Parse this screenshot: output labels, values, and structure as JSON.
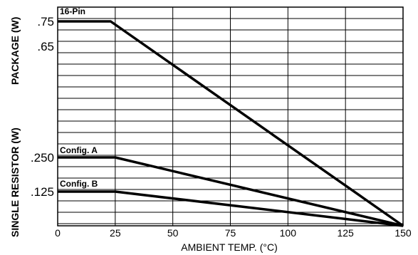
{
  "chart_data": {
    "type": "line",
    "xlabel": "AMBIENT TEMP. (°C)",
    "ylabel_top": "PACKAGE (W)",
    "ylabel_bottom": "SINGLE RESISTOR (W)",
    "xlim": [
      0,
      150
    ],
    "x_ticks": [
      "0",
      "25",
      "50",
      "75",
      "100",
      "125",
      "150"
    ],
    "y_tick_labels": [
      ".75",
      ".65",
      ".250",
      ".125"
    ],
    "grid": true,
    "series": [
      {
        "name": "16-Pin",
        "x": [
          0,
          23,
          150
        ],
        "y": [
          0.75,
          0.75,
          0
        ]
      },
      {
        "name": "Config. A",
        "x": [
          0,
          25,
          150
        ],
        "y": [
          0.25,
          0.25,
          0
        ]
      },
      {
        "name": "Config. B",
        "x": [
          0,
          25,
          150
        ],
        "y": [
          0.125,
          0.125,
          0
        ]
      }
    ],
    "line_color": "#000000"
  }
}
